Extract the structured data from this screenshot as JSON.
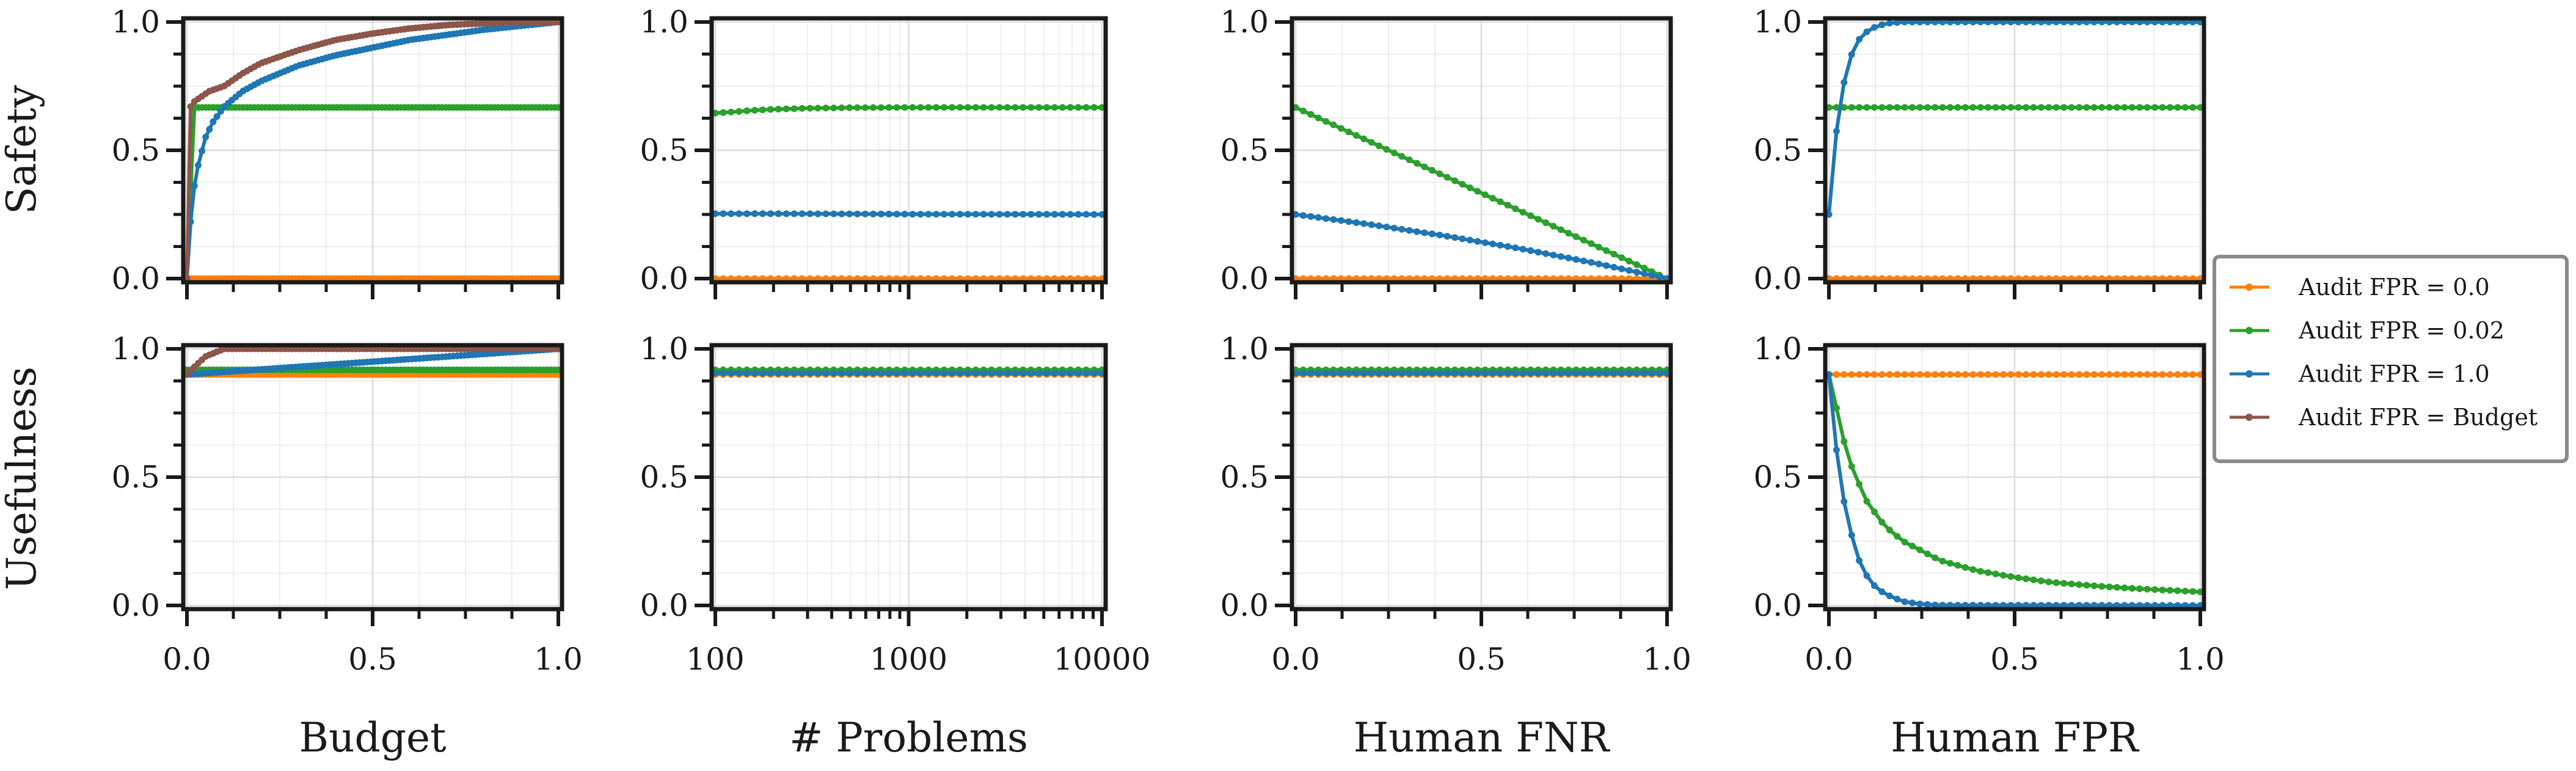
{
  "figure": {
    "row_labels": [
      "Safety",
      "Usefulness"
    ],
    "legend": [
      {
        "label": "Audit FPR = 0.0",
        "color": "#ff7f0e"
      },
      {
        "label": "Audit FPR = 0.02",
        "color": "#2ca02c"
      },
      {
        "label": "Audit FPR = 1.0",
        "color": "#1f77b4"
      },
      {
        "label": "Audit FPR = Budget",
        "color": "#8c564b"
      }
    ]
  },
  "chart_data": [
    {
      "type": "line",
      "row": 0,
      "col": 0,
      "ylabel": "Safety",
      "xlabel": "Budget",
      "xscale": "linear",
      "xlim": [
        0,
        1
      ],
      "ylim": [
        0,
        1
      ],
      "xticks": [
        0,
        0.5,
        1
      ],
      "xtick_labels": [
        "0.0",
        "0.5",
        "1.0"
      ],
      "yticks": [
        0,
        0.5,
        1
      ],
      "ytick_labels": [
        "0.0",
        "0.5",
        "1.0"
      ],
      "series": [
        {
          "name": "Audit FPR = 0.0",
          "color": "#ff7f0e",
          "x": [
            0,
            1
          ],
          "y": [
            0,
            0
          ],
          "markers": 100
        },
        {
          "name": "Audit FPR = 0.02",
          "color": "#2ca02c",
          "x": [
            0,
            0.02,
            1
          ],
          "y": [
            0,
            0.667,
            0.667
          ],
          "markers": 100
        },
        {
          "name": "Audit FPR = 1.0",
          "color": "#1f77b4",
          "x": [
            0,
            0.005,
            0.01,
            0.02,
            0.03,
            0.05,
            0.07,
            0.1,
            0.15,
            0.2,
            0.3,
            0.4,
            0.5,
            0.6,
            0.7,
            0.8,
            0.9,
            1.0
          ],
          "y": [
            0,
            0.12,
            0.22,
            0.36,
            0.44,
            0.55,
            0.61,
            0.67,
            0.73,
            0.77,
            0.83,
            0.87,
            0.9,
            0.93,
            0.95,
            0.97,
            0.985,
            1.0
          ],
          "markers": 100
        },
        {
          "name": "Audit FPR = Budget",
          "color": "#8c564b",
          "x": [
            0,
            0.002,
            0.005,
            0.01,
            0.02,
            0.04,
            0.06,
            0.08,
            0.1,
            0.15,
            0.2,
            0.3,
            0.4,
            0.5,
            0.6,
            0.7,
            0.8,
            0.9,
            1.0
          ],
          "y": [
            0,
            0.45,
            0.62,
            0.67,
            0.69,
            0.71,
            0.73,
            0.74,
            0.75,
            0.8,
            0.84,
            0.89,
            0.93,
            0.955,
            0.975,
            0.988,
            0.995,
            0.999,
            1.0
          ],
          "markers": 100
        }
      ]
    },
    {
      "type": "line",
      "row": 0,
      "col": 1,
      "ylabel": "",
      "xlabel": "# Problems",
      "xscale": "log",
      "xlim": [
        100,
        10000
      ],
      "ylim": [
        0,
        1
      ],
      "xticks": [
        100,
        1000,
        10000
      ],
      "xtick_labels": [
        "100",
        "1000",
        "10000"
      ],
      "yticks": [
        0,
        0.5,
        1
      ],
      "ytick_labels": [
        "0.0",
        "0.5",
        "1.0"
      ],
      "series": [
        {
          "name": "Audit FPR = 0.0",
          "color": "#ff7f0e",
          "x": [
            100,
            10000
          ],
          "y": [
            0,
            0
          ],
          "markers": 50
        },
        {
          "name": "Audit FPR = 0.02",
          "color": "#2ca02c",
          "x": [
            100,
            150,
            200,
            300,
            500,
            1000,
            10000
          ],
          "y": [
            0.645,
            0.655,
            0.66,
            0.664,
            0.666,
            0.667,
            0.667
          ],
          "markers": 50
        },
        {
          "name": "Audit FPR = 1.0",
          "color": "#1f77b4",
          "x": [
            100,
            1000,
            10000
          ],
          "y": [
            0.253,
            0.251,
            0.25
          ],
          "markers": 50
        }
      ]
    },
    {
      "type": "line",
      "row": 0,
      "col": 2,
      "ylabel": "",
      "xlabel": "Human FNR",
      "xscale": "linear",
      "xlim": [
        0,
        1
      ],
      "ylim": [
        0,
        1
      ],
      "xticks": [
        0,
        0.5,
        1
      ],
      "xtick_labels": [
        "0.0",
        "0.5",
        "1.0"
      ],
      "yticks": [
        0,
        0.5,
        1
      ],
      "ytick_labels": [
        "0.0",
        "0.5",
        "1.0"
      ],
      "series": [
        {
          "name": "Audit FPR = 0.0",
          "color": "#ff7f0e",
          "x": [
            0,
            1
          ],
          "y": [
            0,
            0
          ],
          "markers": 50
        },
        {
          "name": "Audit FPR = 0.02",
          "color": "#2ca02c",
          "x": [
            0,
            1
          ],
          "y": [
            0.667,
            0
          ],
          "markers": 50
        },
        {
          "name": "Audit FPR = 1.0",
          "color": "#1f77b4",
          "x": [
            0,
            0.2,
            0.4,
            0.6,
            0.8,
            1.0
          ],
          "y": [
            0.25,
            0.211,
            0.167,
            0.118,
            0.062,
            0
          ],
          "markers": 50
        }
      ]
    },
    {
      "type": "line",
      "row": 0,
      "col": 3,
      "ylabel": "",
      "xlabel": "Human FPR",
      "xscale": "linear",
      "xlim": [
        0,
        1
      ],
      "ylim": [
        0,
        1
      ],
      "xticks": [
        0,
        0.5,
        1
      ],
      "xtick_labels": [
        "0.0",
        "0.5",
        "1.0"
      ],
      "yticks": [
        0,
        0.5,
        1
      ],
      "ytick_labels": [
        "0.0",
        "0.5",
        "1.0"
      ],
      "series": [
        {
          "name": "Audit FPR = 0.0",
          "color": "#ff7f0e",
          "x": [
            0,
            1
          ],
          "y": [
            0,
            0
          ],
          "markers": 50
        },
        {
          "name": "Audit FPR = 0.02",
          "color": "#2ca02c",
          "x": [
            0,
            1
          ],
          "y": [
            0.667,
            0.667
          ],
          "markers": 50
        },
        {
          "name": "Audit FPR = 1.0",
          "color": "#1f77b4",
          "x": [
            0,
            0.01,
            0.02,
            0.03,
            0.04,
            0.06,
            0.08,
            0.1,
            0.13,
            0.16,
            0.2,
            0.3,
            1.0
          ],
          "y": [
            0.25,
            0.43,
            0.57,
            0.68,
            0.76,
            0.87,
            0.93,
            0.96,
            0.985,
            0.995,
            1.0,
            1.0,
            1.0
          ],
          "markers": 50
        }
      ]
    },
    {
      "type": "line",
      "row": 1,
      "col": 0,
      "ylabel": "Usefulness",
      "xlabel": "Budget",
      "xscale": "linear",
      "xlim": [
        0,
        1
      ],
      "ylim": [
        0,
        1
      ],
      "xticks": [
        0,
        0.5,
        1
      ],
      "xtick_labels": [
        "0.0",
        "0.5",
        "1.0"
      ],
      "yticks": [
        0,
        0.5,
        1
      ],
      "ytick_labels": [
        "0.0",
        "0.5",
        "1.0"
      ],
      "series": [
        {
          "name": "Audit FPR = 0.0",
          "color": "#ff7f0e",
          "x": [
            0,
            1
          ],
          "y": [
            0.9,
            0.9
          ],
          "markers": 100
        },
        {
          "name": "Audit FPR = 0.02",
          "color": "#2ca02c",
          "x": [
            0,
            1
          ],
          "y": [
            0.918,
            0.918
          ],
          "markers": 100
        },
        {
          "name": "Audit FPR = 1.0",
          "color": "#1f77b4",
          "x": [
            0,
            1
          ],
          "y": [
            0.9,
            1.0
          ],
          "markers": 100
        },
        {
          "name": "Audit FPR = Budget",
          "color": "#8c564b",
          "x": [
            0,
            0.02,
            0.05,
            0.1,
            1.0
          ],
          "y": [
            0.9,
            0.93,
            0.97,
            1.0,
            1.0
          ],
          "markers": 100
        }
      ]
    },
    {
      "type": "line",
      "row": 1,
      "col": 1,
      "ylabel": "",
      "xlabel": "# Problems",
      "xscale": "log",
      "xlim": [
        100,
        10000
      ],
      "ylim": [
        0,
        1
      ],
      "xticks": [
        100,
        1000,
        10000
      ],
      "xtick_labels": [
        "100",
        "1000",
        "10000"
      ],
      "yticks": [
        0,
        0.5,
        1
      ],
      "ytick_labels": [
        "0.0",
        "0.5",
        "1.0"
      ],
      "series": [
        {
          "name": "Audit FPR = 0.0",
          "color": "#ff7f0e",
          "x": [
            100,
            10000
          ],
          "y": [
            0.9,
            0.9
          ],
          "markers": 50
        },
        {
          "name": "Audit FPR = 0.02",
          "color": "#2ca02c",
          "x": [
            100,
            10000
          ],
          "y": [
            0.918,
            0.918
          ],
          "markers": 50
        },
        {
          "name": "Audit FPR = 1.0",
          "color": "#1f77b4",
          "x": [
            100,
            10000
          ],
          "y": [
            0.905,
            0.905
          ],
          "markers": 50
        }
      ]
    },
    {
      "type": "line",
      "row": 1,
      "col": 2,
      "ylabel": "",
      "xlabel": "Human FNR",
      "xscale": "linear",
      "xlim": [
        0,
        1
      ],
      "ylim": [
        0,
        1
      ],
      "xticks": [
        0,
        0.5,
        1
      ],
      "xtick_labels": [
        "0.0",
        "0.5",
        "1.0"
      ],
      "yticks": [
        0,
        0.5,
        1
      ],
      "ytick_labels": [
        "0.0",
        "0.5",
        "1.0"
      ],
      "series": [
        {
          "name": "Audit FPR = 0.0",
          "color": "#ff7f0e",
          "x": [
            0,
            1
          ],
          "y": [
            0.9,
            0.9
          ],
          "markers": 50
        },
        {
          "name": "Audit FPR = 0.02",
          "color": "#2ca02c",
          "x": [
            0,
            1
          ],
          "y": [
            0.918,
            0.918
          ],
          "markers": 50
        },
        {
          "name": "Audit FPR = 1.0",
          "color": "#1f77b4",
          "x": [
            0,
            1
          ],
          "y": [
            0.905,
            0.905
          ],
          "markers": 50
        }
      ]
    },
    {
      "type": "line",
      "row": 1,
      "col": 3,
      "ylabel": "",
      "xlabel": "Human FPR",
      "xscale": "linear",
      "xlim": [
        0,
        1
      ],
      "ylim": [
        0,
        1
      ],
      "xticks": [
        0,
        0.5,
        1
      ],
      "xtick_labels": [
        "0.0",
        "0.5",
        "1.0"
      ],
      "yticks": [
        0,
        0.5,
        1
      ],
      "ytick_labels": [
        "0.0",
        "0.5",
        "1.0"
      ],
      "series": [
        {
          "name": "Audit FPR = 0.0",
          "color": "#ff7f0e",
          "x": [
            0,
            1
          ],
          "y": [
            0.9,
            0.9
          ],
          "markers": 50
        },
        {
          "name": "Audit FPR = 0.02",
          "color": "#2ca02c",
          "x": [
            0,
            0.05,
            0.1,
            0.15,
            0.2,
            0.3,
            0.4,
            0.5,
            0.6,
            0.7,
            0.8,
            0.9,
            1.0
          ],
          "y": [
            0.9,
            0.58,
            0.41,
            0.31,
            0.25,
            0.175,
            0.135,
            0.11,
            0.09,
            0.078,
            0.068,
            0.06,
            0.053
          ],
          "markers": 50
        },
        {
          "name": "Audit FPR = 1.0",
          "color": "#1f77b4",
          "x": [
            0,
            0.02,
            0.04,
            0.06,
            0.08,
            0.1,
            0.12,
            0.15,
            0.2,
            0.25,
            0.3,
            1.0
          ],
          "y": [
            0.9,
            0.61,
            0.41,
            0.28,
            0.18,
            0.12,
            0.08,
            0.045,
            0.015,
            0.005,
            0.001,
            0.0
          ],
          "markers": 50
        }
      ]
    }
  ]
}
